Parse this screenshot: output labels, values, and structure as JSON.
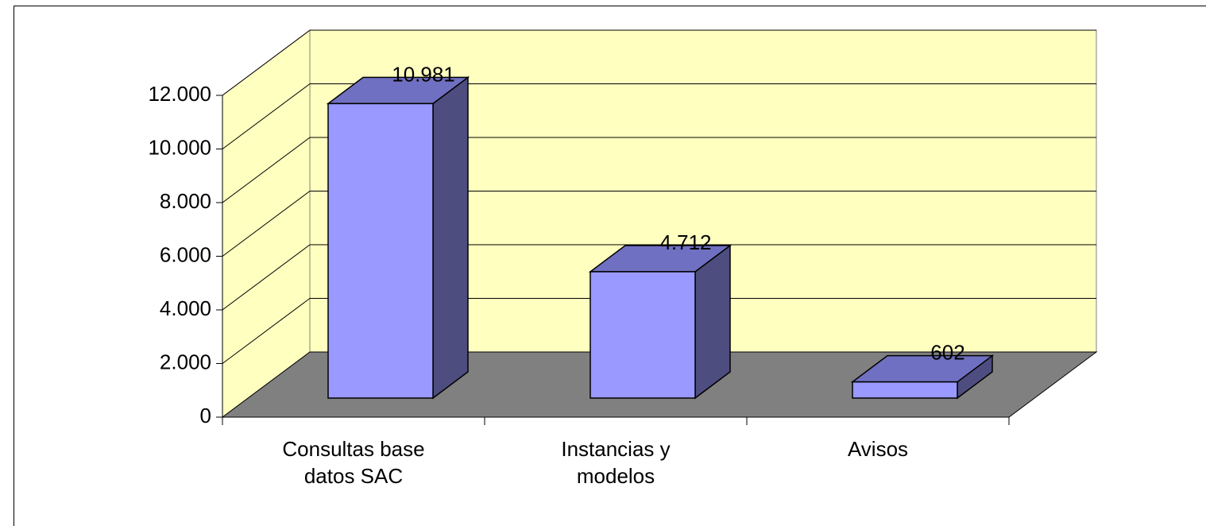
{
  "chart_data": {
    "type": "bar3d",
    "categories": [
      "Consultas base datos SAC",
      "Instancias y modelos",
      "Avisos"
    ],
    "values": [
      10981,
      4712,
      602
    ],
    "value_labels": [
      "10.981",
      "4.712",
      "602"
    ],
    "color": "#9999ff",
    "ylim": [
      0,
      12000
    ],
    "yticks": [
      0,
      {
        "value": 2000,
        "label": "2.000"
      },
      {
        "value": 4000,
        "label": "4.000"
      },
      {
        "value": 6000,
        "label": "6.000"
      },
      {
        "value": 8000,
        "label": "8.000"
      },
      {
        "value": 10000,
        "label": "10.000"
      },
      {
        "value": 12000,
        "label": "12.000"
      }
    ],
    "grid": true
  }
}
